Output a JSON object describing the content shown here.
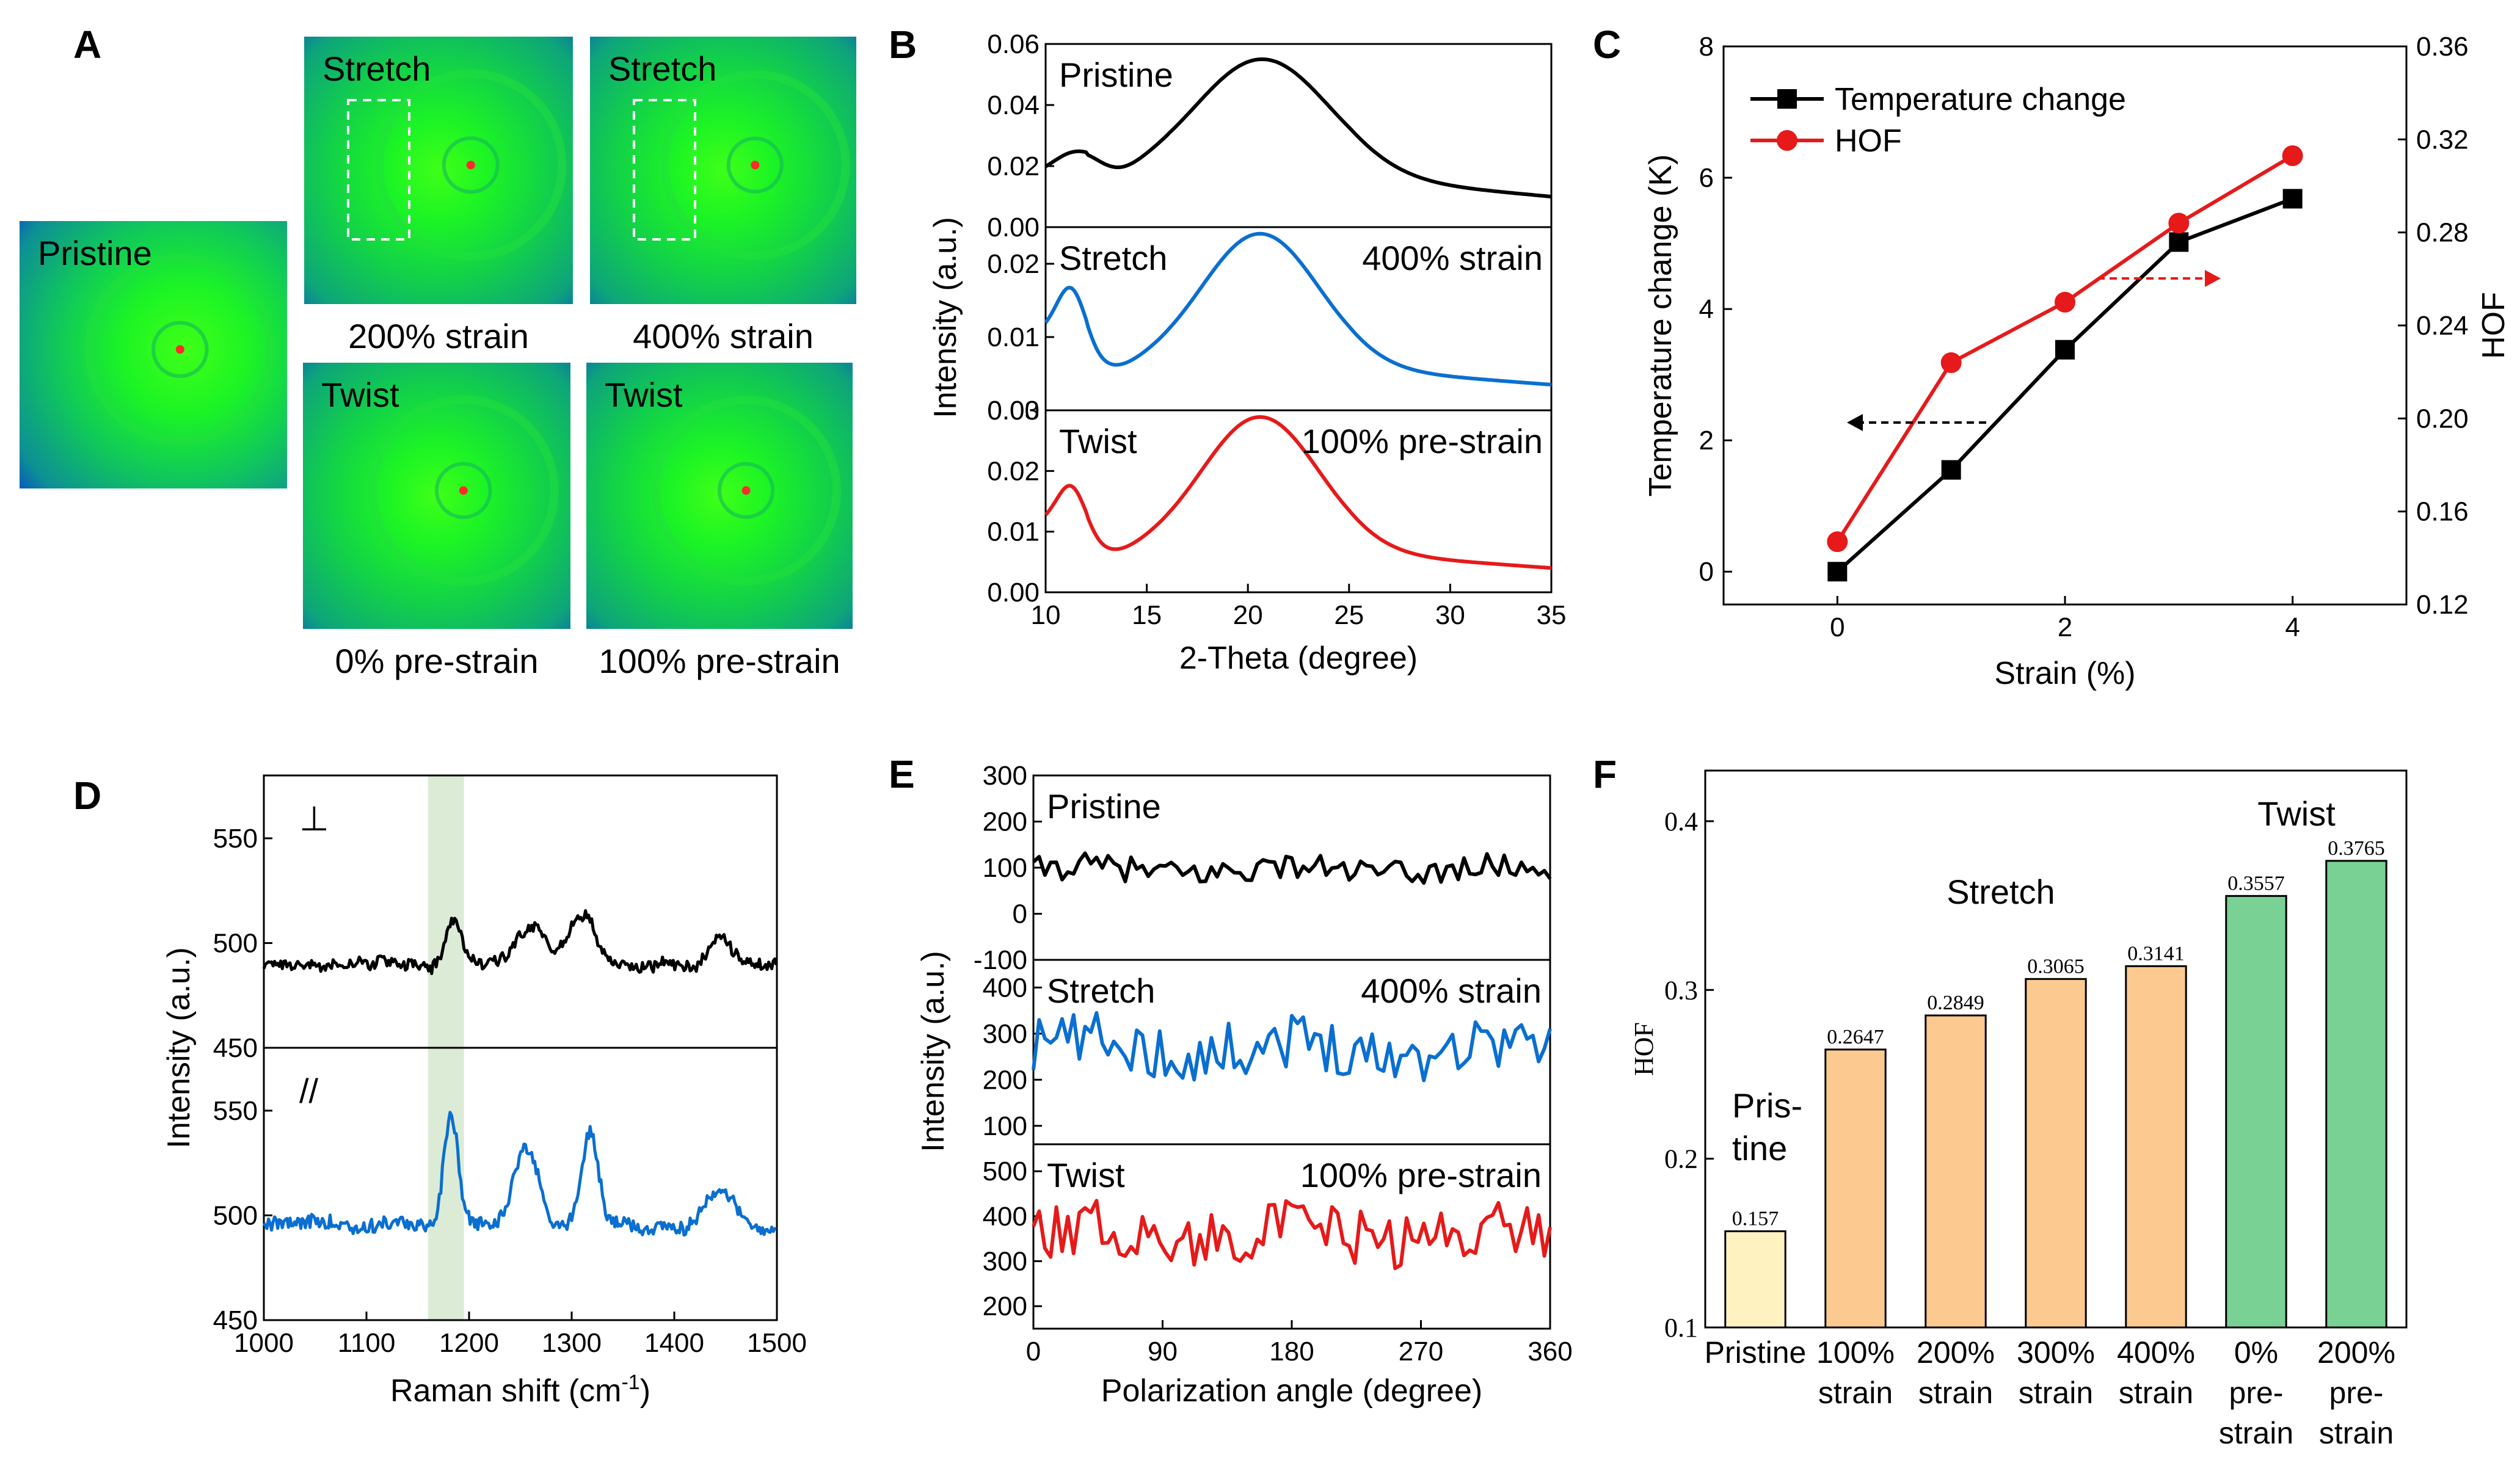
{
  "panel_letters": [
    "A",
    "B",
    "C",
    "D",
    "E",
    "F"
  ],
  "panelA": {
    "images": [
      {
        "title": "Pristine",
        "caption": ""
      },
      {
        "title": "Stretch",
        "caption": "200% strain"
      },
      {
        "title": "Stretch",
        "caption": "400% strain"
      },
      {
        "title": "Twist",
        "caption": "0%  pre-strain"
      },
      {
        "title": "Twist",
        "caption": "100% pre-strain"
      }
    ]
  },
  "colors": {
    "black": "#000000",
    "blue": "#0a6fd0",
    "red": "#e61a1a",
    "pristine_bar": "#fdf2c0",
    "stretch_bar": "#fcc990",
    "twist_bar": "#79d193",
    "highlight": "#dcebd6"
  },
  "chart_data": [
    {
      "id": "B",
      "type": "line",
      "xlabel": "2-Theta (degree)",
      "ylabel": "Intensity (a.u.)",
      "xlim": [
        10,
        35
      ],
      "xticks": [
        "10",
        "15",
        "20",
        "25",
        "30",
        "35"
      ],
      "subplots": [
        {
          "label": "Pristine",
          "right_label": "",
          "ylim": [
            0,
            0.06
          ],
          "yticks": [
            "0.00",
            "0.02",
            "0.04",
            "0.06"
          ],
          "color": "#000000",
          "base": 0.01,
          "bumps": [
            {
              "x": 20.7,
              "h": 0.039,
              "w": 3.3
            },
            {
              "x": 11.5,
              "h": 0.008,
              "w": 1.2
            }
          ]
        },
        {
          "label": "Stretch",
          "right_label": "400% strain",
          "ylim": [
            0,
            0.025
          ],
          "yticks": [
            "0.00",
            "0.01",
            "0.02"
          ],
          "color": "#0a6fd0",
          "base": 0.0035,
          "bumps": [
            {
              "x": 20.6,
              "h": 0.0185,
              "w": 2.9
            },
            {
              "x": 11.3,
              "h": 0.0075,
              "w": 0.7
            },
            {
              "x": 10.0,
              "h": 0.005,
              "w": 1.5
            }
          ]
        },
        {
          "label": "Twist",
          "right_label": "100% pre-strain",
          "ylim": [
            0,
            0.03
          ],
          "yticks": [
            "0.00",
            "0.01",
            "0.02",
            "0.03"
          ],
          "color": "#e61a1a",
          "base": 0.004,
          "bumps": [
            {
              "x": 20.6,
              "h": 0.0225,
              "w": 2.9
            },
            {
              "x": 11.3,
              "h": 0.0075,
              "w": 0.7
            },
            {
              "x": 10.0,
              "h": 0.005,
              "w": 1.5
            }
          ]
        }
      ]
    },
    {
      "id": "C",
      "type": "line",
      "xlabel": "Strain (%)",
      "ylabel": "Temperature change (K)",
      "y2label": "HOF",
      "xlim": [
        -1,
        5
      ],
      "xticks": [
        "0",
        "2",
        "4"
      ],
      "ylim": [
        -0.5,
        8
      ],
      "yticks": [
        "0",
        "2",
        "4",
        "6",
        "8"
      ],
      "y2lim": [
        0.12,
        0.36
      ],
      "y2ticks": [
        "0.12",
        "0.16",
        "0.20",
        "0.24",
        "0.28",
        "0.32",
        "0.36"
      ],
      "series": [
        {
          "name": "Temperature change",
          "color": "#000000",
          "marker": "square",
          "axis": "left",
          "x": [
            0,
            1,
            2,
            3,
            4
          ],
          "y": [
            0.0,
            1.55,
            3.38,
            5.02,
            5.68
          ]
        },
        {
          "name": "HOF",
          "color": "#e61a1a",
          "marker": "circle",
          "axis": "right",
          "x": [
            0,
            1,
            2,
            3,
            4
          ],
          "y": [
            0.147,
            0.224,
            0.25,
            0.284,
            0.313
          ]
        }
      ]
    },
    {
      "id": "D",
      "type": "line",
      "xlabel": "Raman shift (cm",
      "xlabel_sup": "-1",
      "xlabel_close": ")",
      "ylabel": "Intensity (a.u.)",
      "xlim": [
        1000,
        1500
      ],
      "xticks": [
        "1000",
        "1100",
        "1200",
        "1300",
        "1400",
        "1500"
      ],
      "highlight": [
        1160,
        1195
      ],
      "subplots": [
        {
          "label": "⊥",
          "ylim": [
            450,
            580
          ],
          "yticks": [
            "450",
            "500",
            "550"
          ],
          "color": "#000000",
          "base": 490,
          "noise": 5,
          "peaks": [
            {
              "x": 1185,
              "h": 22,
              "w": 8
            },
            {
              "x": 1260,
              "h": 20,
              "w": 15
            },
            {
              "x": 1310,
              "h": 25,
              "w": 12
            },
            {
              "x": 1445,
              "h": 15,
              "w": 10
            }
          ]
        },
        {
          "label": "//",
          "ylim": [
            450,
            580
          ],
          "yticks": [
            "450",
            "500",
            "550"
          ],
          "color": "#0a6fd0",
          "base": 495,
          "noise": 6,
          "peaks": [
            {
              "x": 1182,
              "h": 52,
              "w": 7
            },
            {
              "x": 1255,
              "h": 38,
              "w": 12
            },
            {
              "x": 1318,
              "h": 45,
              "w": 8
            },
            {
              "x": 1445,
              "h": 20,
              "w": 12
            }
          ]
        }
      ]
    },
    {
      "id": "E",
      "type": "line",
      "xlabel": "Polarization angle (degree)",
      "ylabel": "Intensity (a.u.)",
      "xlim": [
        0,
        360
      ],
      "xticks": [
        "0",
        "90",
        "180",
        "270",
        "360"
      ],
      "subplots": [
        {
          "label": "Pristine",
          "right_label": "",
          "ylim": [
            -100,
            300
          ],
          "yticks": [
            "-100",
            "0",
            "100",
            "200",
            "300"
          ],
          "color": "#000000",
          "base": 95,
          "amp": 28
        },
        {
          "label": "Stretch",
          "right_label": "400% strain",
          "ylim": [
            60,
            460
          ],
          "yticks": [
            "100",
            "200",
            "300",
            "400"
          ],
          "color": "#0a6fd0",
          "base": 270,
          "amp": 60
        },
        {
          "label": "Twist",
          "right_label": "100% pre-strain",
          "ylim": [
            150,
            560
          ],
          "yticks": [
            "200",
            "300",
            "400",
            "500"
          ],
          "color": "#e61a1a",
          "base": 360,
          "amp": 60
        }
      ]
    },
    {
      "id": "F",
      "type": "bar",
      "ylabel": "HOF",
      "ylim": [
        0.1,
        0.43
      ],
      "yticks": [
        "0.1",
        "0.2",
        "0.3",
        "0.4"
      ],
      "categories": [
        [
          "Pristine"
        ],
        [
          "100%",
          "strain"
        ],
        [
          "200%",
          "strain"
        ],
        [
          "300%",
          "strain"
        ],
        [
          "400%",
          "strain"
        ],
        [
          "0%",
          "pre-",
          "strain"
        ],
        [
          "200%",
          "pre-",
          "strain"
        ]
      ],
      "values": [
        0.157,
        0.2647,
        0.2849,
        0.3065,
        0.3141,
        0.3557,
        0.3765
      ],
      "value_labels": [
        "0.157",
        "0.2647",
        "0.2849",
        "0.3065",
        "0.3141",
        "0.3557",
        "0.3765"
      ],
      "groups": [
        "pristine",
        "stretch",
        "stretch",
        "stretch",
        "stretch",
        "twist",
        "twist"
      ],
      "annotations": {
        "pristine": [
          "Pris-",
          "tine"
        ],
        "stretch": "Stretch",
        "twist": "Twist"
      }
    }
  ]
}
